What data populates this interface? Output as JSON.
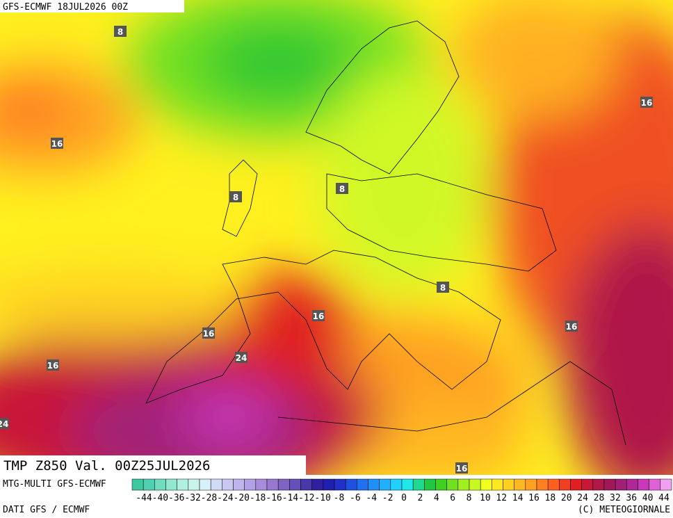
{
  "header": {
    "title": "GFS-ECMWF 18JUL2026 00Z"
  },
  "map": {
    "title": "TMP Z850 Val. 00Z25JUL2026",
    "contour_labels": [
      "8",
      "16",
      "8",
      "8",
      "8",
      "16",
      "16",
      "16",
      "24",
      "16",
      "16",
      "24",
      "16"
    ]
  },
  "footer": {
    "model": "MTG-MULTI GFS-ECMWF",
    "source": "DATI GFS / ECMWF",
    "copyright": "(C) METEOGIORNALE"
  },
  "colorbar": {
    "labels": [
      "-44",
      "-40",
      "-36",
      "-32",
      "-28",
      "-24",
      "-20",
      "-18",
      "-16",
      "-14",
      "-12",
      "-10",
      "-8",
      "-6",
      "-4",
      "-2",
      "0",
      "2",
      "4",
      "6",
      "8",
      "10",
      "12",
      "14",
      "16",
      "18",
      "20",
      "24",
      "28",
      "32",
      "36",
      "40",
      "44"
    ],
    "colors": [
      "#3cc8a0",
      "#50d0b0",
      "#70dcc0",
      "#90e8d0",
      "#b0f0e0",
      "#c8f4ec",
      "#d8f0f8",
      "#d0dcf4",
      "#c8c8f0",
      "#c0b4ec",
      "#b4a0e4",
      "#a88cdc",
      "#9878d0",
      "#8064c4",
      "#6450b8",
      "#4838a8",
      "#3020a0",
      "#2020b0",
      "#2030c8",
      "#2050e0",
      "#2070f0",
      "#2090f8",
      "#20b0ff",
      "#20d0ff",
      "#20e8e8",
      "#20d890",
      "#20c840",
      "#40d020",
      "#70e020",
      "#a0f020",
      "#c8f820",
      "#f0ff20",
      "#ffe820",
      "#ffd020",
      "#ffb820",
      "#ffa020",
      "#ff8020",
      "#ff6020",
      "#f04020",
      "#e02020",
      "#c81838",
      "#b01848",
      "#a01858",
      "#a02078",
      "#b02898",
      "#c838b8",
      "#e060d8",
      "#f0a0f0"
    ]
  }
}
